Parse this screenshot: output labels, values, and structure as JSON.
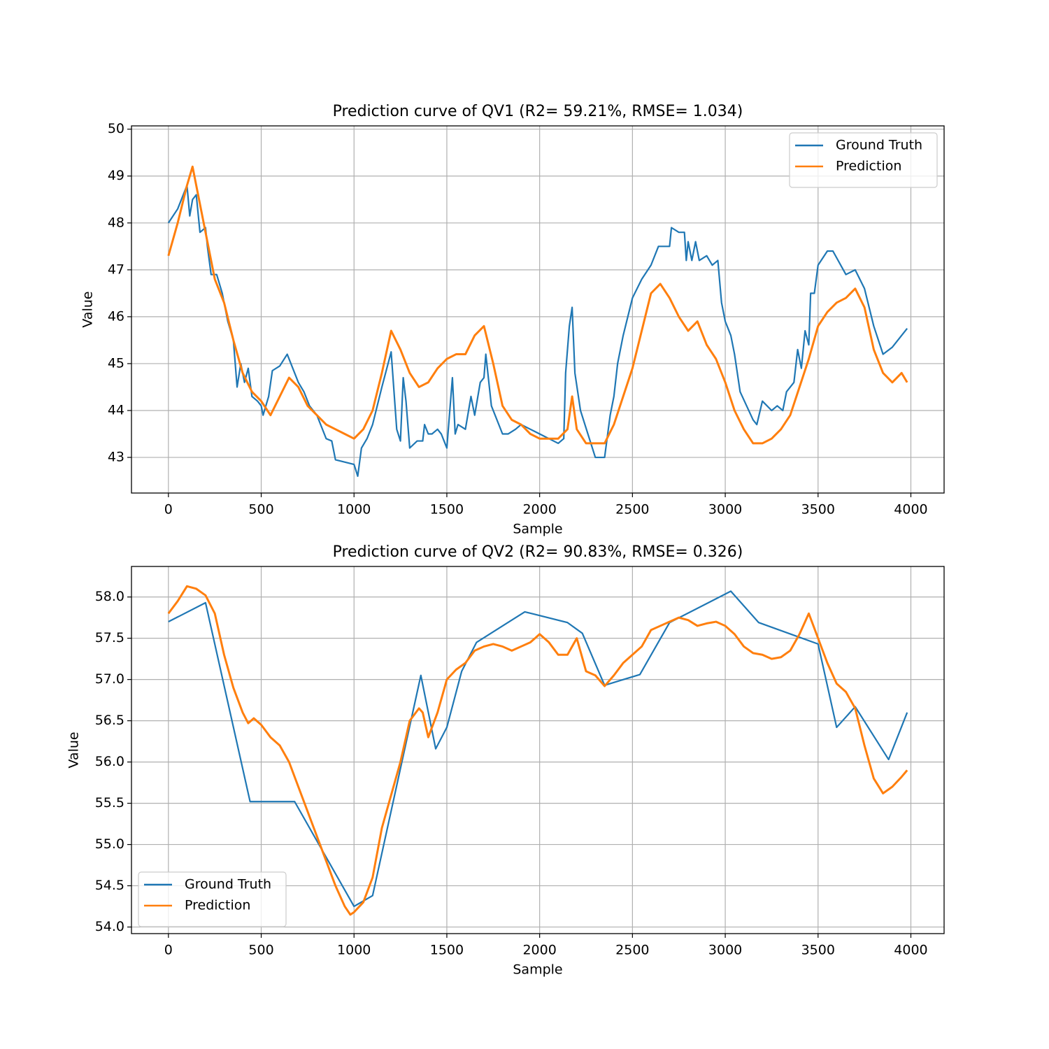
{
  "chart_data": [
    {
      "type": "line",
      "title": "Prediction curve of QV1 (R2= 59.21%, RMSE= 1.034)",
      "xlabel": "Sample",
      "ylabel": "Value",
      "xlim": [
        -199,
        4179
      ],
      "ylim": [
        42.24,
        50.07
      ],
      "xticks": [
        0,
        500,
        1000,
        1500,
        2000,
        2500,
        3000,
        3500,
        4000
      ],
      "yticks": [
        43,
        44,
        45,
        46,
        47,
        48,
        49,
        50
      ],
      "grid": true,
      "legend": "upper right",
      "series": [
        {
          "name": "Ground Truth",
          "color": "#1f77b4",
          "x": [
            0,
            50,
            100,
            115,
            130,
            150,
            170,
            200,
            210,
            230,
            260,
            290,
            320,
            350,
            370,
            390,
            410,
            430,
            450,
            480,
            500,
            510,
            540,
            560,
            600,
            640,
            660,
            700,
            730,
            760,
            800,
            850,
            880,
            900,
            1000,
            1020,
            1040,
            1070,
            1100,
            1150,
            1200,
            1230,
            1250,
            1265,
            1280,
            1300,
            1340,
            1370,
            1380,
            1400,
            1420,
            1450,
            1470,
            1500,
            1530,
            1545,
            1560,
            1600,
            1630,
            1650,
            1680,
            1700,
            1710,
            1740,
            1800,
            1830,
            1870,
            1900,
            1950,
            2000,
            2100,
            2130,
            2140,
            2160,
            2175,
            2190,
            2220,
            2260,
            2300,
            2350,
            2380,
            2400,
            2420,
            2450,
            2500,
            2550,
            2600,
            2640,
            2700,
            2710,
            2750,
            2780,
            2790,
            2800,
            2820,
            2840,
            2860,
            2900,
            2930,
            2960,
            2980,
            3000,
            3030,
            3050,
            3080,
            3150,
            3170,
            3200,
            3250,
            3280,
            3310,
            3330,
            3370,
            3390,
            3410,
            3430,
            3450,
            3460,
            3480,
            3500,
            3550,
            3580,
            3650,
            3700,
            3750,
            3800,
            3850,
            3900,
            3950,
            3980
          ],
          "values": [
            48.0,
            48.3,
            48.8,
            48.15,
            48.5,
            48.6,
            47.8,
            47.9,
            47.5,
            46.9,
            46.9,
            46.5,
            45.9,
            45.5,
            44.5,
            45.0,
            44.6,
            44.9,
            44.3,
            44.2,
            44.1,
            43.9,
            44.3,
            44.85,
            44.95,
            45.2,
            45.0,
            44.6,
            44.4,
            44.1,
            43.9,
            43.4,
            43.35,
            42.95,
            42.85,
            42.6,
            43.2,
            43.4,
            43.7,
            44.5,
            45.25,
            43.6,
            43.35,
            44.7,
            44.2,
            43.2,
            43.35,
            43.35,
            43.7,
            43.5,
            43.5,
            43.6,
            43.5,
            43.2,
            44.7,
            43.5,
            43.7,
            43.6,
            44.3,
            43.9,
            44.6,
            44.7,
            45.2,
            44.1,
            43.5,
            43.5,
            43.6,
            43.7,
            43.6,
            43.5,
            43.3,
            43.4,
            44.8,
            45.8,
            46.2,
            44.8,
            44.0,
            43.5,
            43.0,
            43.0,
            43.9,
            44.3,
            45.0,
            45.6,
            46.4,
            46.8,
            47.1,
            47.5,
            47.5,
            47.9,
            47.8,
            47.8,
            47.2,
            47.6,
            47.2,
            47.6,
            47.2,
            47.3,
            47.1,
            47.2,
            46.3,
            45.9,
            45.6,
            45.2,
            44.4,
            43.8,
            43.7,
            44.2,
            44.0,
            44.1,
            44.0,
            44.4,
            44.6,
            45.3,
            44.9,
            45.7,
            45.4,
            46.5,
            46.5,
            47.1,
            47.4,
            47.4,
            46.9,
            47.0,
            46.6,
            45.8,
            45.2,
            45.35,
            45.6,
            45.75
          ]
        },
        {
          "name": "Prediction",
          "color": "#ff7f0e",
          "x": [
            0,
            50,
            100,
            130,
            160,
            200,
            250,
            300,
            350,
            400,
            450,
            500,
            550,
            600,
            650,
            700,
            750,
            800,
            850,
            900,
            950,
            1000,
            1050,
            1100,
            1150,
            1200,
            1250,
            1300,
            1350,
            1400,
            1450,
            1500,
            1550,
            1600,
            1650,
            1700,
            1750,
            1800,
            1850,
            1900,
            1950,
            2000,
            2050,
            2100,
            2150,
            2175,
            2200,
            2250,
            2300,
            2350,
            2400,
            2450,
            2500,
            2550,
            2600,
            2650,
            2700,
            2750,
            2800,
            2850,
            2900,
            2950,
            3000,
            3050,
            3100,
            3150,
            3200,
            3250,
            3300,
            3350,
            3400,
            3450,
            3500,
            3550,
            3600,
            3650,
            3700,
            3750,
            3800,
            3850,
            3900,
            3950,
            3980
          ],
          "values": [
            47.3,
            48.0,
            48.8,
            49.2,
            48.6,
            47.8,
            46.8,
            46.3,
            45.5,
            44.8,
            44.4,
            44.2,
            43.9,
            44.3,
            44.7,
            44.5,
            44.1,
            43.9,
            43.7,
            43.6,
            43.5,
            43.4,
            43.6,
            44.0,
            44.8,
            45.7,
            45.3,
            44.8,
            44.5,
            44.6,
            44.9,
            45.1,
            45.2,
            45.2,
            45.6,
            45.8,
            45.0,
            44.1,
            43.8,
            43.7,
            43.5,
            43.4,
            43.4,
            43.4,
            43.6,
            44.3,
            43.6,
            43.3,
            43.3,
            43.3,
            43.7,
            44.3,
            44.9,
            45.7,
            46.5,
            46.7,
            46.4,
            46.0,
            45.7,
            45.9,
            45.4,
            45.1,
            44.6,
            44.0,
            43.6,
            43.3,
            43.3,
            43.4,
            43.6,
            43.9,
            44.5,
            45.1,
            45.8,
            46.1,
            46.3,
            46.4,
            46.6,
            46.2,
            45.3,
            44.8,
            44.6,
            44.8,
            44.6
          ]
        }
      ]
    },
    {
      "type": "line",
      "title": "Prediction curve of QV2 (R2= 90.83%, RMSE= 0.326)",
      "xlabel": "Sample",
      "ylabel": "Value",
      "xlim": [
        -199,
        4179
      ],
      "ylim": [
        53.92,
        58.37
      ],
      "xticks": [
        0,
        500,
        1000,
        1500,
        2000,
        2500,
        3000,
        3500,
        4000
      ],
      "yticks": [
        {
          "value": 54,
          "label": "54.0"
        },
        54.5,
        {
          "value": 55,
          "label": "55.0"
        },
        55.5,
        {
          "value": 56,
          "label": "56.0"
        },
        56.5,
        {
          "value": 57,
          "label": "57.0"
        },
        57.5,
        {
          "value": 58,
          "label": "58.0"
        }
      ],
      "grid": true,
      "legend": "lower left",
      "series": [
        {
          "name": "Ground Truth",
          "color": "#1f77b4",
          "x": [
            0,
            200,
            440,
            680,
            1000,
            1100,
            1360,
            1440,
            1500,
            1580,
            1660,
            1920,
            2150,
            2230,
            2350,
            2540,
            2700,
            3030,
            3180,
            3500,
            3600,
            3700,
            3880,
            3980
          ],
          "values": [
            57.7,
            57.93,
            55.52,
            55.52,
            54.25,
            54.38,
            57.05,
            56.16,
            56.42,
            57.1,
            57.45,
            57.82,
            57.69,
            57.56,
            56.93,
            57.06,
            57.69,
            58.07,
            57.69,
            57.43,
            56.42,
            56.67,
            56.03,
            56.6
          ]
        },
        {
          "name": "Prediction",
          "color": "#ff7f0e",
          "x": [
            0,
            50,
            100,
            150,
            200,
            250,
            300,
            350,
            400,
            430,
            460,
            500,
            550,
            600,
            650,
            700,
            750,
            800,
            850,
            900,
            950,
            980,
            1000,
            1050,
            1100,
            1150,
            1200,
            1250,
            1300,
            1350,
            1370,
            1400,
            1450,
            1500,
            1550,
            1600,
            1650,
            1700,
            1750,
            1800,
            1850,
            1900,
            1950,
            2000,
            2050,
            2100,
            2150,
            2200,
            2250,
            2300,
            2350,
            2400,
            2450,
            2500,
            2550,
            2600,
            2650,
            2700,
            2750,
            2800,
            2850,
            2900,
            2950,
            3000,
            3050,
            3100,
            3150,
            3200,
            3250,
            3300,
            3350,
            3400,
            3450,
            3500,
            3550,
            3600,
            3650,
            3700,
            3750,
            3800,
            3850,
            3900,
            3950,
            3980
          ],
          "values": [
            57.8,
            57.95,
            58.13,
            58.1,
            58.02,
            57.8,
            57.3,
            56.9,
            56.6,
            56.47,
            56.53,
            56.45,
            56.3,
            56.2,
            56.0,
            55.7,
            55.4,
            55.1,
            54.8,
            54.5,
            54.25,
            54.15,
            54.18,
            54.3,
            54.6,
            55.2,
            55.6,
            56.0,
            56.5,
            56.65,
            56.6,
            56.3,
            56.6,
            57.0,
            57.12,
            57.2,
            57.35,
            57.4,
            57.43,
            57.4,
            57.35,
            57.4,
            57.45,
            57.55,
            57.45,
            57.3,
            57.3,
            57.5,
            57.1,
            57.05,
            56.92,
            57.05,
            57.2,
            57.3,
            57.4,
            57.6,
            57.65,
            57.7,
            57.75,
            57.72,
            57.65,
            57.68,
            57.7,
            57.65,
            57.55,
            57.4,
            57.32,
            57.3,
            57.25,
            57.27,
            57.35,
            57.55,
            57.8,
            57.5,
            57.2,
            56.95,
            56.85,
            56.65,
            56.2,
            55.8,
            55.62,
            55.7,
            55.82,
            55.9
          ]
        }
      ]
    }
  ]
}
